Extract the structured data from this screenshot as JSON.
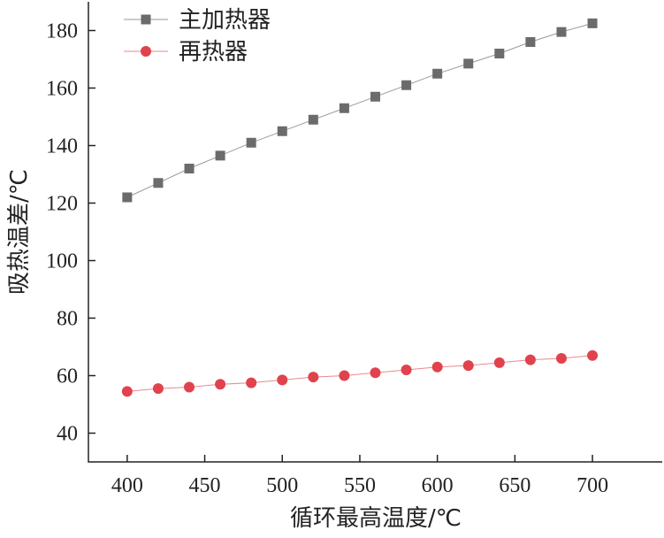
{
  "chart_data": {
    "type": "line",
    "title": "",
    "xlabel": "循环最高温度/℃",
    "ylabel": "吸热温差/℃",
    "x": [
      400,
      420,
      440,
      460,
      480,
      500,
      520,
      540,
      560,
      580,
      600,
      620,
      640,
      660,
      680,
      700
    ],
    "xlim": [
      375,
      745
    ],
    "ylim": [
      30,
      190
    ],
    "xticks": [
      400,
      450,
      500,
      550,
      600,
      650,
      700
    ],
    "yticks": [
      40,
      60,
      80,
      100,
      120,
      140,
      160,
      180
    ],
    "grid": false,
    "legend_position": "top-left",
    "series": [
      {
        "name": "主加热器",
        "marker": "square",
        "color": "#6b6b6b",
        "line_color": "#9a9a9a",
        "values": [
          122,
          127,
          132,
          136.5,
          141,
          145,
          149,
          153,
          157,
          161,
          165,
          168.5,
          172,
          176,
          179.5,
          182.5
        ]
      },
      {
        "name": "再热器",
        "marker": "circle",
        "color": "#e0434d",
        "line_color": "#e88a8f",
        "values": [
          54.5,
          55.5,
          56,
          57,
          57.5,
          58.5,
          59.5,
          60,
          61,
          62,
          63,
          63.5,
          64.5,
          65.5,
          66,
          67
        ]
      }
    ]
  }
}
